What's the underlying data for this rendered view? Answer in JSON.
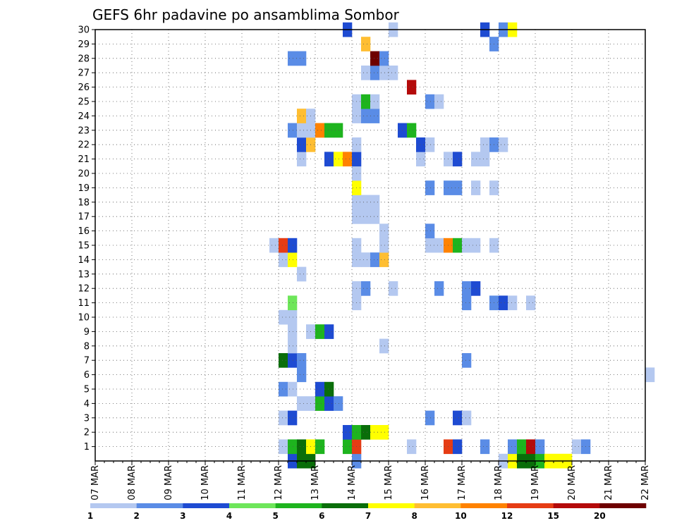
{
  "chart_data": {
    "type": "heatmap",
    "title": "GEFS 6hr padavine po ansamblima Sombor",
    "x_ticks": [
      "07 MAR",
      "08 MAR",
      "09 MAR",
      "10 MAR",
      "11 MAR",
      "12 MAR",
      "13 MAR",
      "14 MAR",
      "15 MAR",
      "16 MAR",
      "17 MAR",
      "18 MAR",
      "19 MAR",
      "20 MAR",
      "21 MAR",
      "22 MAR"
    ],
    "x_range": [
      "07 MAR",
      "22 MAR"
    ],
    "time_step_hours": 6,
    "y_ticks": [
      1,
      2,
      3,
      4,
      5,
      6,
      7,
      8,
      9,
      10,
      11,
      12,
      13,
      14,
      15,
      16,
      17,
      18,
      19,
      20,
      21,
      22,
      23,
      24,
      25,
      26,
      27,
      28,
      29,
      30
    ],
    "y_range": [
      0,
      30
    ],
    "grid": true,
    "legend": {
      "placement": "bottom",
      "labels": [
        "1",
        "2",
        "3",
        "4",
        "5",
        "6",
        "7",
        "8",
        "10",
        "12",
        "15",
        "20"
      ],
      "colors": [
        "#b4c8f0",
        "#5a8ce6",
        "#1e4bd2",
        "#6ee65a",
        "#1eb41e",
        "#0a6e0a",
        "#ffff00",
        "#ffbe32",
        "#ff8200",
        "#e63c14",
        "#b40a0a",
        "#6e0000"
      ]
    },
    "cells_note": "each cell: [member, time step index from 07 MAR 00z (6-hourly), color class index into legend.colors]",
    "cells": [
      [
        0,
        21,
        2
      ],
      [
        0,
        22,
        5
      ],
      [
        0,
        23,
        5
      ],
      [
        0,
        28,
        1
      ],
      [
        0,
        44,
        0
      ],
      [
        0,
        45,
        6
      ],
      [
        0,
        46,
        5
      ],
      [
        0,
        47,
        5
      ],
      [
        0,
        48,
        4
      ],
      [
        0,
        49,
        6
      ],
      [
        0,
        50,
        6
      ],
      [
        0,
        51,
        6
      ],
      [
        1,
        20,
        0
      ],
      [
        1,
        21,
        4
      ],
      [
        1,
        22,
        5
      ],
      [
        1,
        23,
        6
      ],
      [
        1,
        24,
        4
      ],
      [
        1,
        27,
        4
      ],
      [
        1,
        28,
        9
      ],
      [
        1,
        34,
        0
      ],
      [
        1,
        38,
        9
      ],
      [
        1,
        39,
        2
      ],
      [
        1,
        42,
        1
      ],
      [
        1,
        45,
        1
      ],
      [
        1,
        46,
        4
      ],
      [
        1,
        47,
        10
      ],
      [
        1,
        48,
        1
      ],
      [
        1,
        52,
        0
      ],
      [
        1,
        53,
        1
      ],
      [
        2,
        27,
        2
      ],
      [
        2,
        28,
        4
      ],
      [
        2,
        29,
        5
      ],
      [
        2,
        30,
        6
      ],
      [
        2,
        31,
        6
      ],
      [
        3,
        20,
        0
      ],
      [
        3,
        21,
        2
      ],
      [
        3,
        36,
        1
      ],
      [
        3,
        39,
        2
      ],
      [
        3,
        40,
        0
      ],
      [
        4,
        22,
        0
      ],
      [
        4,
        23,
        0
      ],
      [
        4,
        24,
        4
      ],
      [
        4,
        25,
        2
      ],
      [
        4,
        26,
        1
      ],
      [
        5,
        20,
        1
      ],
      [
        5,
        21,
        0
      ],
      [
        5,
        24,
        2
      ],
      [
        5,
        25,
        5
      ],
      [
        6,
        22,
        1
      ],
      [
        6,
        60,
        0
      ],
      [
        7,
        20,
        5
      ],
      [
        7,
        21,
        2
      ],
      [
        7,
        22,
        1
      ],
      [
        7,
        40,
        1
      ],
      [
        8,
        21,
        0
      ],
      [
        8,
        31,
        0
      ],
      [
        9,
        21,
        0
      ],
      [
        9,
        23,
        0
      ],
      [
        9,
        24,
        4
      ],
      [
        9,
        25,
        2
      ],
      [
        10,
        20,
        0
      ],
      [
        10,
        21,
        0
      ],
      [
        11,
        21,
        3
      ],
      [
        11,
        28,
        0
      ],
      [
        11,
        40,
        1
      ],
      [
        11,
        43,
        1
      ],
      [
        11,
        44,
        2
      ],
      [
        11,
        45,
        0
      ],
      [
        11,
        47,
        0
      ],
      [
        12,
        28,
        0
      ],
      [
        12,
        29,
        1
      ],
      [
        12,
        32,
        0
      ],
      [
        12,
        37,
        1
      ],
      [
        12,
        40,
        1
      ],
      [
        12,
        41,
        2
      ],
      [
        13,
        22,
        0
      ],
      [
        14,
        20,
        0
      ],
      [
        14,
        21,
        6
      ],
      [
        14,
        28,
        0
      ],
      [
        14,
        29,
        0
      ],
      [
        14,
        30,
        1
      ],
      [
        14,
        31,
        7
      ],
      [
        15,
        19,
        0
      ],
      [
        15,
        20,
        9
      ],
      [
        15,
        21,
        2
      ],
      [
        15,
        28,
        0
      ],
      [
        15,
        31,
        0
      ],
      [
        15,
        36,
        0
      ],
      [
        15,
        37,
        0
      ],
      [
        15,
        38,
        8
      ],
      [
        15,
        39,
        4
      ],
      [
        15,
        40,
        0
      ],
      [
        15,
        41,
        0
      ],
      [
        15,
        43,
        0
      ],
      [
        16,
        31,
        0
      ],
      [
        16,
        36,
        1
      ],
      [
        17,
        28,
        0
      ],
      [
        17,
        29,
        0
      ],
      [
        17,
        30,
        0
      ],
      [
        18,
        28,
        0
      ],
      [
        18,
        29,
        0
      ],
      [
        18,
        30,
        0
      ],
      [
        19,
        28,
        6
      ],
      [
        19,
        36,
        1
      ],
      [
        19,
        38,
        1
      ],
      [
        19,
        39,
        1
      ],
      [
        19,
        41,
        0
      ],
      [
        19,
        43,
        0
      ],
      [
        20,
        28,
        0
      ],
      [
        21,
        22,
        0
      ],
      [
        21,
        25,
        2
      ],
      [
        21,
        26,
        6
      ],
      [
        21,
        27,
        8
      ],
      [
        21,
        28,
        2
      ],
      [
        21,
        35,
        0
      ],
      [
        21,
        38,
        0
      ],
      [
        21,
        39,
        2
      ],
      [
        21,
        41,
        0
      ],
      [
        21,
        42,
        0
      ],
      [
        22,
        22,
        2
      ],
      [
        22,
        23,
        7
      ],
      [
        22,
        28,
        0
      ],
      [
        22,
        35,
        2
      ],
      [
        22,
        36,
        0
      ],
      [
        22,
        42,
        0
      ],
      [
        22,
        43,
        1
      ],
      [
        22,
        44,
        0
      ],
      [
        23,
        21,
        1
      ],
      [
        23,
        22,
        0
      ],
      [
        23,
        23,
        0
      ],
      [
        23,
        24,
        8
      ],
      [
        23,
        25,
        4
      ],
      [
        23,
        26,
        4
      ],
      [
        23,
        33,
        2
      ],
      [
        23,
        34,
        4
      ],
      [
        24,
        22,
        7
      ],
      [
        24,
        23,
        0
      ],
      [
        24,
        28,
        0
      ],
      [
        24,
        29,
        1
      ],
      [
        24,
        30,
        1
      ],
      [
        25,
        28,
        0
      ],
      [
        25,
        29,
        4
      ],
      [
        25,
        30,
        0
      ],
      [
        25,
        36,
        1
      ],
      [
        25,
        37,
        0
      ],
      [
        26,
        34,
        10
      ],
      [
        27,
        29,
        0
      ],
      [
        27,
        30,
        1
      ],
      [
        27,
        31,
        0
      ],
      [
        27,
        32,
        0
      ],
      [
        28,
        21,
        1
      ],
      [
        28,
        22,
        1
      ],
      [
        28,
        30,
        11
      ],
      [
        28,
        31,
        1
      ],
      [
        29,
        29,
        7
      ],
      [
        29,
        43,
        1
      ],
      [
        30,
        27,
        2
      ],
      [
        30,
        32,
        0
      ],
      [
        30,
        42,
        2
      ],
      [
        30,
        44,
        1
      ],
      [
        30,
        45,
        6
      ]
    ]
  }
}
